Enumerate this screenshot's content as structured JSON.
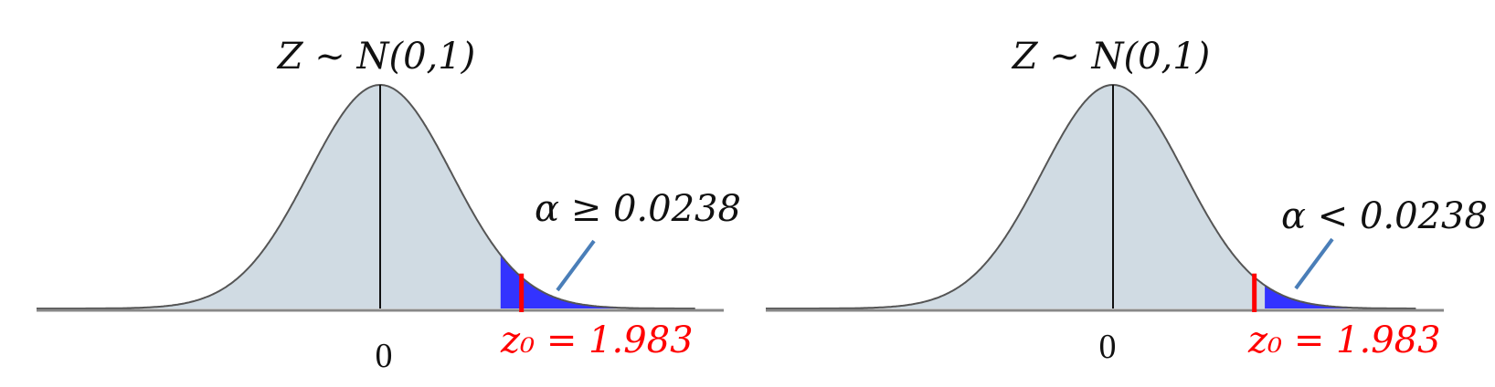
{
  "panels": [
    {
      "distribution_label": "Z ~ N(0,1)",
      "mean_label": "0",
      "alpha_label": "α ≥ 0.0238",
      "critical_label": "z₀ = 1.983",
      "critical_value": 1.983,
      "shaded_tail_start": 1.69
    },
    {
      "distribution_label": "Z ~ N(0,1)",
      "mean_label": "0",
      "alpha_label": "α < 0.0238",
      "critical_label": "z₀ = 1.983",
      "critical_value": 1.983,
      "shaded_tail_start": 2.13
    }
  ],
  "colors": {
    "curve_fill": "#d0dbe3",
    "tail_fill": "#3333ff",
    "critical_line": "#ff0000",
    "pointer": "#4a7eb8",
    "axis": "#888888"
  }
}
